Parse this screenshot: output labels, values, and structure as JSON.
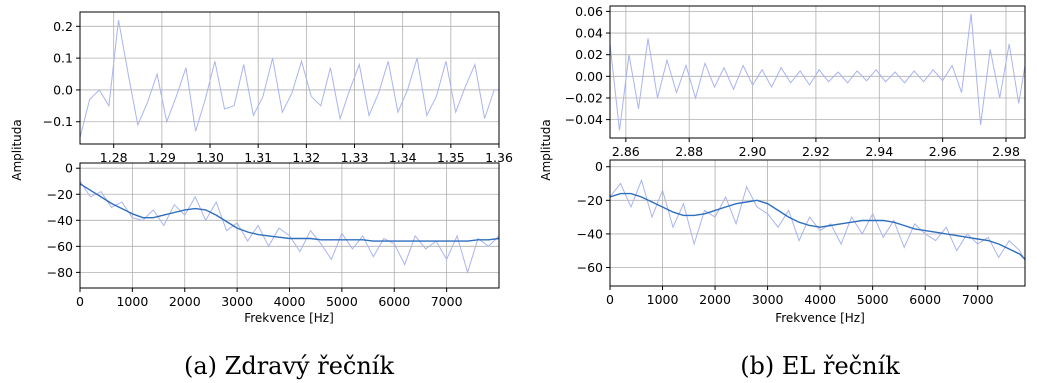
{
  "chart_data": [
    {
      "type": "line",
      "panel": "a-top",
      "xlabel": "",
      "ylabel": "Amplituda",
      "xlim": [
        1.273,
        1.36
      ],
      "ylim": [
        -0.17,
        0.245
      ],
      "xticks": [
        1.28,
        1.29,
        1.3,
        1.31,
        1.32,
        1.33,
        1.34,
        1.35,
        1.36
      ],
      "xtick_labels": [
        "1.28",
        "1.29",
        "1.30",
        "1.31",
        "1.32",
        "1.33",
        "1.34",
        "1.35",
        "1.36"
      ],
      "yticks": [
        -0.1,
        0.0,
        0.1,
        0.2
      ],
      "ytick_labels": [
        "−0.1",
        "0.0",
        "0.1",
        "0.2"
      ],
      "grid": true,
      "series": [
        {
          "color": "#aab4ee",
          "x": [
            1.273,
            1.275,
            1.277,
            1.279,
            1.281,
            1.283,
            1.285,
            1.287,
            1.289,
            1.291,
            1.293,
            1.295,
            1.297,
            1.299,
            1.301,
            1.303,
            1.305,
            1.307,
            1.309,
            1.311,
            1.313,
            1.315,
            1.317,
            1.319,
            1.321,
            1.323,
            1.325,
            1.327,
            1.329,
            1.331,
            1.333,
            1.335,
            1.337,
            1.339,
            1.341,
            1.343,
            1.345,
            1.347,
            1.349,
            1.351,
            1.353,
            1.355,
            1.357,
            1.359,
            1.36
          ],
          "y": [
            -0.15,
            -0.03,
            0.0,
            -0.05,
            0.22,
            0.05,
            -0.11,
            -0.04,
            0.05,
            -0.1,
            -0.02,
            0.07,
            -0.13,
            -0.03,
            0.09,
            -0.06,
            -0.05,
            0.08,
            -0.08,
            -0.02,
            0.1,
            -0.07,
            -0.01,
            0.09,
            -0.02,
            -0.05,
            0.07,
            -0.09,
            0.0,
            0.08,
            -0.08,
            -0.01,
            0.09,
            -0.07,
            0.0,
            0.1,
            -0.08,
            -0.02,
            0.09,
            -0.07,
            0.01,
            0.08,
            -0.09,
            0.0,
            0.0
          ]
        }
      ]
    },
    {
      "type": "line",
      "panel": "a-bottom",
      "xlabel": "Frekvence [Hz]",
      "ylabel": "",
      "xlim": [
        0,
        8000
      ],
      "ylim": [
        -92,
        4
      ],
      "xticks": [
        0,
        1000,
        2000,
        3000,
        4000,
        5000,
        6000,
        7000
      ],
      "xtick_labels": [
        "0",
        "1000",
        "2000",
        "3000",
        "4000",
        "5000",
        "6000",
        "7000"
      ],
      "yticks": [
        -80,
        -60,
        -40,
        -20,
        0
      ],
      "ytick_labels": [
        "−80",
        "−60",
        "−40",
        "−20",
        "0"
      ],
      "grid": true,
      "series": [
        {
          "color": "#aab4ee",
          "x": [
            0,
            200,
            400,
            600,
            800,
            1000,
            1200,
            1400,
            1600,
            1800,
            2000,
            2200,
            2400,
            2600,
            2800,
            3000,
            3200,
            3400,
            3600,
            3800,
            4000,
            4200,
            4400,
            4600,
            4800,
            5000,
            5200,
            5400,
            5600,
            5800,
            6000,
            6200,
            6400,
            6600,
            6800,
            7000,
            7200,
            7400,
            7600,
            7800,
            8000
          ],
          "y": [
            -10,
            -22,
            -18,
            -30,
            -26,
            -38,
            -40,
            -32,
            -44,
            -28,
            -36,
            -22,
            -40,
            -26,
            -48,
            -42,
            -56,
            -44,
            -60,
            -46,
            -52,
            -64,
            -48,
            -58,
            -70,
            -50,
            -62,
            -52,
            -68,
            -54,
            -58,
            -74,
            -52,
            -62,
            -56,
            -70,
            -52,
            -80,
            -54,
            -60,
            -52
          ]
        },
        {
          "color": "#2e6fbd",
          "x": [
            0,
            200,
            400,
            600,
            800,
            1000,
            1200,
            1400,
            1600,
            1800,
            2000,
            2200,
            2400,
            2600,
            2800,
            3000,
            3200,
            3400,
            3600,
            3800,
            4000,
            4200,
            4400,
            4600,
            4800,
            5000,
            5200,
            5400,
            5600,
            5800,
            6000,
            6200,
            6400,
            6600,
            6800,
            7000,
            7200,
            7400,
            7600,
            7800,
            8000
          ],
          "y": [
            -12,
            -17,
            -22,
            -27,
            -31,
            -35,
            -38,
            -38,
            -36,
            -34,
            -32,
            -31,
            -32,
            -36,
            -41,
            -46,
            -49,
            -51,
            -52,
            -53,
            -54,
            -54,
            -54,
            -55,
            -55,
            -55,
            -55,
            -55,
            -56,
            -56,
            -56,
            -56,
            -56,
            -56,
            -56,
            -56,
            -56,
            -56,
            -55,
            -55,
            -54
          ]
        }
      ]
    },
    {
      "type": "line",
      "panel": "b-top",
      "xlabel": "",
      "ylabel": "Amplituda",
      "xlim": [
        2.855,
        2.986
      ],
      "ylim": [
        -0.057,
        0.065
      ],
      "xticks": [
        2.86,
        2.88,
        2.9,
        2.92,
        2.94,
        2.96,
        2.98
      ],
      "xtick_labels": [
        "2.86",
        "2.88",
        "2.90",
        "2.92",
        "2.94",
        "2.96",
        "2.98"
      ],
      "yticks": [
        -0.04,
        -0.02,
        0.0,
        0.02,
        0.04,
        0.06
      ],
      "ytick_labels": [
        "−0.04",
        "−0.02",
        "0.00",
        "0.02",
        "0.04",
        "0.06"
      ],
      "grid": true,
      "series": [
        {
          "color": "#aab4ee",
          "x": [
            2.855,
            2.858,
            2.861,
            2.864,
            2.867,
            2.87,
            2.873,
            2.876,
            2.879,
            2.882,
            2.885,
            2.888,
            2.891,
            2.894,
            2.897,
            2.9,
            2.903,
            2.906,
            2.909,
            2.912,
            2.915,
            2.918,
            2.921,
            2.924,
            2.927,
            2.93,
            2.933,
            2.936,
            2.939,
            2.942,
            2.945,
            2.948,
            2.951,
            2.954,
            2.957,
            2.96,
            2.963,
            2.966,
            2.969,
            2.972,
            2.975,
            2.978,
            2.981,
            2.984,
            2.986
          ],
          "y": [
            0.03,
            -0.05,
            0.02,
            -0.03,
            0.035,
            -0.02,
            0.015,
            -0.015,
            0.01,
            -0.02,
            0.012,
            -0.01,
            0.008,
            -0.012,
            0.01,
            -0.008,
            0.006,
            -0.01,
            0.008,
            -0.006,
            0.005,
            -0.008,
            0.006,
            -0.005,
            0.004,
            -0.006,
            0.005,
            -0.004,
            0.006,
            -0.005,
            0.004,
            -0.006,
            0.005,
            -0.005,
            0.006,
            -0.004,
            0.01,
            -0.015,
            0.058,
            -0.045,
            0.025,
            -0.02,
            0.03,
            -0.025,
            0.01
          ]
        }
      ]
    },
    {
      "type": "line",
      "panel": "b-bottom",
      "xlabel": "Frekvence [Hz]",
      "ylabel": "",
      "xlim": [
        0,
        7900
      ],
      "ylim": [
        -71,
        4
      ],
      "xticks": [
        0,
        1000,
        2000,
        3000,
        4000,
        5000,
        6000,
        7000
      ],
      "xtick_labels": [
        "0",
        "1000",
        "2000",
        "3000",
        "4000",
        "5000",
        "6000",
        "7000"
      ],
      "yticks": [
        -60,
        -40,
        -20,
        0
      ],
      "ytick_labels": [
        "−60",
        "−40",
        "−20",
        "0"
      ],
      "grid": true,
      "series": [
        {
          "color": "#aab4ee",
          "x": [
            0,
            200,
            400,
            600,
            800,
            1000,
            1200,
            1400,
            1600,
            1800,
            2000,
            2200,
            2400,
            2600,
            2800,
            3000,
            3200,
            3400,
            3600,
            3800,
            4000,
            4200,
            4400,
            4600,
            4800,
            5000,
            5200,
            5400,
            5600,
            5800,
            6000,
            6200,
            6400,
            6600,
            6800,
            7000,
            7200,
            7400,
            7600,
            7800,
            7900
          ],
          "y": [
            -18,
            -10,
            -24,
            -8,
            -30,
            -14,
            -36,
            -22,
            -46,
            -26,
            -30,
            -18,
            -34,
            -12,
            -24,
            -28,
            -36,
            -26,
            -44,
            -30,
            -38,
            -34,
            -46,
            -30,
            -40,
            -28,
            -42,
            -32,
            -48,
            -34,
            -40,
            -44,
            -36,
            -50,
            -40,
            -46,
            -42,
            -54,
            -44,
            -50,
            -56
          ]
        },
        {
          "color": "#2e6fbd",
          "x": [
            0,
            200,
            400,
            600,
            800,
            1000,
            1200,
            1400,
            1600,
            1800,
            2000,
            2200,
            2400,
            2600,
            2800,
            3000,
            3200,
            3400,
            3600,
            3800,
            4000,
            4200,
            4400,
            4600,
            4800,
            5000,
            5200,
            5400,
            5600,
            5800,
            6000,
            6200,
            6400,
            6600,
            6800,
            7000,
            7200,
            7400,
            7600,
            7800,
            7900
          ],
          "y": [
            -18,
            -16,
            -16,
            -18,
            -21,
            -24,
            -27,
            -29,
            -29,
            -28,
            -26,
            -24,
            -22,
            -21,
            -20,
            -22,
            -26,
            -30,
            -33,
            -35,
            -36,
            -35,
            -34,
            -33,
            -32,
            -32,
            -32,
            -33,
            -35,
            -37,
            -38,
            -39,
            -40,
            -41,
            -42,
            -43,
            -44,
            -46,
            -49,
            -52,
            -55
          ]
        }
      ]
    }
  ],
  "captions": {
    "a": "(a) Zdravý řečník",
    "b": "(b) EL řečník"
  }
}
